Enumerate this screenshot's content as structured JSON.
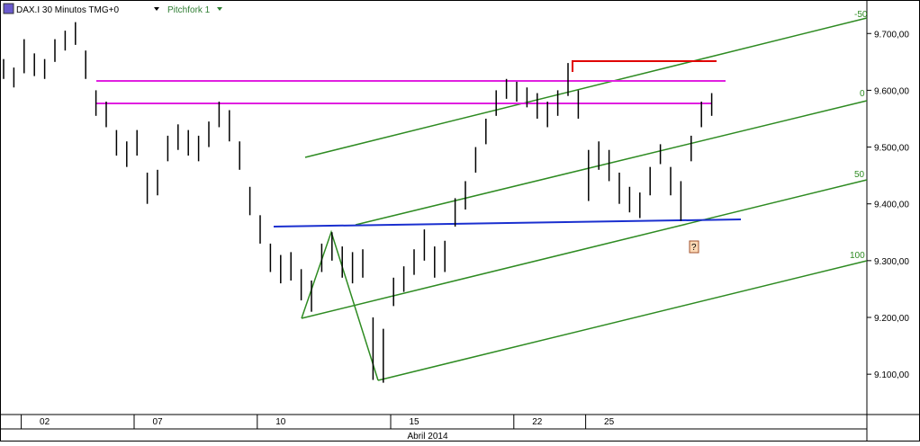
{
  "chart_data": {
    "type": "ohlc",
    "title": "DAX.I 30 Minutos TMG+0",
    "study": "Pitchfork 1",
    "pitchfork_labels": [
      "-50",
      "0",
      "50",
      "100"
    ],
    "note_icon": "?",
    "x_label": "Abril 2014",
    "categories": [
      null,
      null,
      null,
      null,
      "02",
      null,
      null,
      null,
      null,
      null,
      null,
      null,
      null,
      null,
      null,
      "07",
      null,
      null,
      null,
      null,
      null,
      null,
      null,
      null,
      null,
      null,
      null,
      "10",
      null,
      null,
      null,
      null,
      null,
      null,
      null,
      null,
      null,
      null,
      null,
      null,
      "15",
      null,
      null,
      null,
      null,
      null,
      null,
      null,
      null,
      null,
      null,
      null,
      "22",
      null,
      null,
      null,
      null,
      null,
      null,
      "25",
      null,
      null,
      null,
      null,
      null,
      null,
      null,
      null,
      null,
      null
    ],
    "high": [
      9655,
      9640,
      9690,
      9665,
      9655,
      9690,
      9705,
      9720,
      9670,
      9600,
      9580,
      9530,
      9510,
      9530,
      9455,
      9460,
      9520,
      9540,
      9530,
      9520,
      9545,
      9580,
      9565,
      9510,
      9430,
      9380,
      9330,
      9310,
      9315,
      9285,
      9265,
      9330,
      9350,
      9325,
      9315,
      9320,
      9200,
      9180,
      9270,
      9290,
      9320,
      9355,
      9325,
      9335,
      9410,
      9440,
      9500,
      9550,
      9600,
      9620,
      9615,
      9605,
      9595,
      9580,
      9600,
      9648,
      9600,
      9495,
      9510,
      9495,
      9455,
      9430,
      9420,
      9465,
      9505,
      9465,
      9440,
      9520,
      9580,
      9595
    ],
    "low": [
      9620,
      9605,
      9630,
      9625,
      9620,
      9650,
      9670,
      9680,
      9620,
      9555,
      9535,
      9485,
      9465,
      9485,
      9400,
      9415,
      9475,
      9495,
      9485,
      9475,
      9500,
      9535,
      9510,
      9460,
      9380,
      9330,
      9280,
      9260,
      9265,
      9230,
      9210,
      9280,
      9300,
      9270,
      9260,
      9270,
      9090,
      9085,
      9220,
      9245,
      9275,
      9300,
      9270,
      9280,
      9360,
      9390,
      9455,
      9505,
      9555,
      9585,
      9580,
      9570,
      9550,
      9535,
      9555,
      9590,
      9550,
      9405,
      9460,
      9440,
      9400,
      9385,
      9375,
      9415,
      9470,
      9415,
      9370,
      9475,
      9535,
      9555
    ],
    "color": "#000000",
    "ylim": [
      9029,
      9759
    ],
    "yticks": [
      {
        "value": 9100,
        "label": "9.100,00"
      },
      {
        "value": 9200,
        "label": "9.200,00"
      },
      {
        "value": 9300,
        "label": "9.300,00"
      },
      {
        "value": 9400,
        "label": "9.400,00"
      },
      {
        "value": 9500,
        "label": "9.500,00"
      },
      {
        "value": 9600,
        "label": "9.600,00"
      },
      {
        "value": 9700,
        "label": "9.700,00"
      }
    ]
  }
}
